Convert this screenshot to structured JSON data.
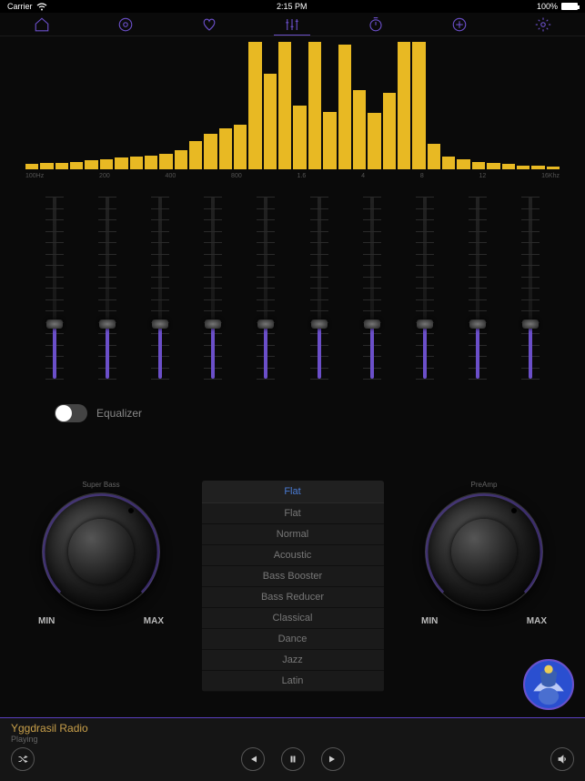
{
  "statusbar": {
    "carrier": "Carrier",
    "time": "2:15 PM",
    "battery": "100%"
  },
  "tabs": [
    {
      "name": "home-icon"
    },
    {
      "name": "music-icon"
    },
    {
      "name": "heart-icon"
    },
    {
      "name": "equalizer-icon",
      "active": true
    },
    {
      "name": "timer-icon"
    },
    {
      "name": "add-icon"
    },
    {
      "name": "gear-icon"
    }
  ],
  "spectrum": {
    "bars": [
      4,
      5,
      5,
      6,
      7,
      8,
      9,
      10,
      11,
      12,
      15,
      22,
      28,
      32,
      35,
      100,
      75,
      100,
      50,
      100,
      45,
      98,
      62,
      44,
      60,
      100,
      100,
      20,
      10,
      8,
      6,
      5,
      4,
      3,
      3,
      2
    ],
    "freq_labels": [
      "100Hz",
      "200",
      "400",
      "800",
      "1.6",
      "4",
      "8",
      "12",
      "16Khz"
    ],
    "bar_color": "#e8b923"
  },
  "eq_sliders": {
    "count": 10,
    "value_pct": 30,
    "fill_color": "#6b4fc9"
  },
  "eq_toggle": {
    "label": "Equalizer",
    "on": false
  },
  "knob_left": {
    "label": "Super Bass",
    "min": "MIN",
    "max": "MAX",
    "angle": 135
  },
  "knob_right": {
    "label": "PreAmp",
    "min": "MIN",
    "max": "MAX",
    "angle": 135
  },
  "presets": {
    "selected": "Flat",
    "items": [
      "Flat",
      "Normal",
      "Acoustic",
      "Bass Booster",
      "Bass Reducer",
      "Classical",
      "Dance",
      "Jazz",
      "Latin"
    ]
  },
  "nowplaying": {
    "title": "Yggdrasil Radio",
    "status": "Playing"
  },
  "controls": {
    "shuffle": "shuffle-icon",
    "prev": "prev-icon",
    "pause": "pause-icon",
    "next": "next-icon",
    "volume": "volume-icon"
  },
  "colors": {
    "accent": "#6b4fc9",
    "bar": "#e8b923",
    "title": "#c9a04a"
  }
}
